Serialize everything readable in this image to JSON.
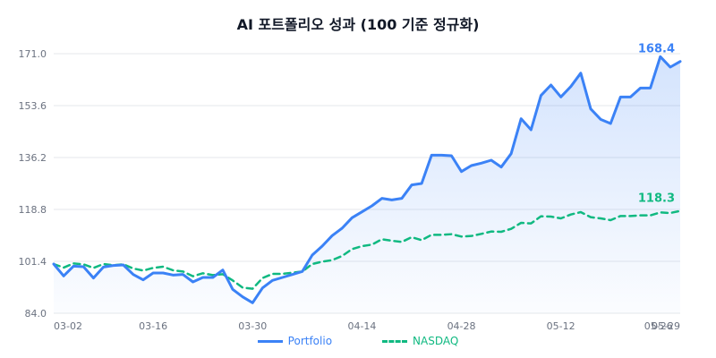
{
  "chart_data": {
    "type": "line",
    "title": "AI 포트폴리오 성과 (100 기준 정규화)",
    "ylim": [
      84.0,
      171.0
    ],
    "yticks": [
      "84.0",
      "101.4",
      "118.8",
      "136.2",
      "153.6",
      "171.0"
    ],
    "xticks": [
      "03-02",
      "03-16",
      "03-30",
      "04-14",
      "04-28",
      "05-12",
      "05-26",
      "05-29"
    ],
    "grid": true,
    "legend_position": "bottom",
    "series": [
      {
        "name": "Portfolio",
        "color": "#3b82f6",
        "style": "solid",
        "end_label": "168.4",
        "values": [
          100.5,
          96.5,
          99.8,
          99.6,
          95.8,
          99.5,
          100.0,
          100.2,
          97.0,
          95.2,
          97.5,
          97.5,
          96.8,
          97.0,
          94.5,
          96.0,
          96.0,
          98.5,
          92.0,
          89.5,
          87.5,
          92.5,
          95.0,
          96.0,
          97.0,
          98.0,
          103.5,
          106.5,
          110.0,
          112.5,
          116.0,
          118.0,
          120.0,
          122.5,
          122.0,
          122.5,
          127.0,
          127.5,
          137.0,
          137.0,
          136.8,
          131.5,
          133.5,
          134.3,
          135.3,
          133.0,
          137.5,
          149.2,
          145.5,
          157.0,
          160.5,
          156.5,
          160.0,
          164.5,
          152.5,
          149.0,
          147.6,
          156.5,
          156.5,
          159.5,
          159.5,
          170.0,
          166.5,
          168.4
        ]
      },
      {
        "name": "NASDAQ",
        "color": "#10b981",
        "style": "dashed",
        "end_label": "118.3",
        "values": [
          100.5,
          99.3,
          100.7,
          100.4,
          99.2,
          100.5,
          100.1,
          100.4,
          99.0,
          98.3,
          99.2,
          99.6,
          98.4,
          98.0,
          96.4,
          97.4,
          96.8,
          97.1,
          95.0,
          92.6,
          92.2,
          95.8,
          97.2,
          97.2,
          97.6,
          98.0,
          100.5,
          101.3,
          101.8,
          103.2,
          105.5,
          106.5,
          107.0,
          108.8,
          108.3,
          107.9,
          109.5,
          108.5,
          110.3,
          110.3,
          110.5,
          109.7,
          109.9,
          110.6,
          111.4,
          111.3,
          112.3,
          114.3,
          114.1,
          116.5,
          116.4,
          115.8,
          117.1,
          117.9,
          116.2,
          115.8,
          115.2,
          116.6,
          116.6,
          116.8,
          116.8,
          117.8,
          117.6,
          118.3
        ]
      }
    ]
  }
}
